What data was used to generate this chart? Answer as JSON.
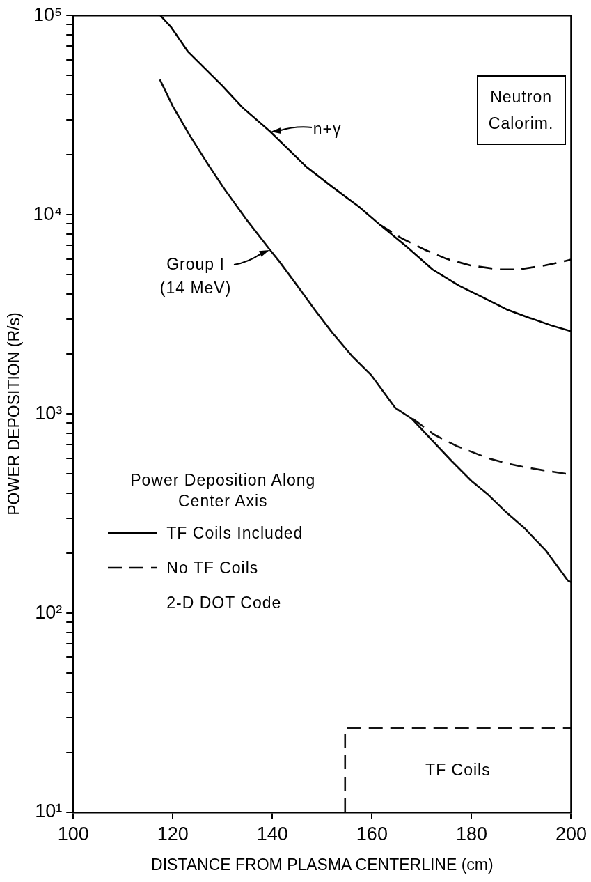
{
  "chart_data": {
    "type": "line",
    "xlabel": "DISTANCE FROM PLASMA CENTERLINE (cm)",
    "ylabel": "POWER DEPOSITION (R/s)",
    "log": "y",
    "marker": "none",
    "legend": "left",
    "legend_title": "Power Deposition Along Center Axis",
    "xlim": [
      100,
      200
    ],
    "xticks": [
      100,
      120,
      140,
      160,
      180,
      200
    ],
    "ylim": [
      10,
      100000
    ],
    "yticks": [
      {
        "value": 10,
        "label": "10¹"
      },
      {
        "value": 20,
        "label": null
      },
      {
        "value": 30,
        "label": null
      },
      {
        "value": 40,
        "label": null
      },
      {
        "value": 50,
        "label": null
      },
      {
        "value": 60,
        "label": null
      },
      {
        "value": 70,
        "label": null
      },
      {
        "value": 80,
        "label": null
      },
      {
        "value": 90,
        "label": null
      },
      {
        "value": 100,
        "label": "10²"
      },
      {
        "value": 200,
        "label": null
      },
      {
        "value": 300,
        "label": null
      },
      {
        "value": 400,
        "label": null
      },
      {
        "value": 500,
        "label": null
      },
      {
        "value": 600,
        "label": null
      },
      {
        "value": 700,
        "label": null
      },
      {
        "value": 800,
        "label": null
      },
      {
        "value": 900,
        "label": null
      },
      {
        "value": 1000,
        "label": "10³"
      },
      {
        "value": 2000,
        "label": null
      },
      {
        "value": 3000,
        "label": null
      },
      {
        "value": 4000,
        "label": null
      },
      {
        "value": 5000,
        "label": null
      },
      {
        "value": 6000,
        "label": null
      },
      {
        "value": 7000,
        "label": null
      },
      {
        "value": 8000,
        "label": null
      },
      {
        "value": 9000,
        "label": null
      },
      {
        "value": 10000,
        "label": "10⁴"
      },
      {
        "value": 20000,
        "label": null
      },
      {
        "value": 30000,
        "label": null
      },
      {
        "value": 40000,
        "label": null
      },
      {
        "value": 50000,
        "label": null
      },
      {
        "value": 60000,
        "label": null
      },
      {
        "value": 70000,
        "label": null
      },
      {
        "value": 80000,
        "label": null
      },
      {
        "value": 90000,
        "label": null
      },
      {
        "value": 100000,
        "label": "10⁵"
      }
    ],
    "series": [
      {
        "name": "TF Coils Included",
        "color": "#000000",
        "line_style": "solid",
        "x": [
          117.5,
          119.7,
          123,
          129.8,
          134,
          139.5,
          146.8,
          152,
          157.3,
          161.6,
          167,
          172.2,
          177.5,
          182.7,
          187,
          191.7,
          196,
          200
        ],
        "values": [
          100000,
          87000,
          66000,
          44700,
          34500,
          26200,
          17400,
          13800,
          11000,
          8900,
          6900,
          5300,
          4400,
          3800,
          3350,
          3030,
          2780,
          2600
        ]
      },
      {
        "name": "No TF Coils",
        "color": "#050505",
        "line_style": "dashed",
        "x": [
          161.6,
          166,
          170.6,
          175,
          179.8,
          185.6,
          189.4,
          194.7,
          198.9,
          200
        ],
        "values": [
          8900,
          7600,
          6670,
          6000,
          5560,
          5310,
          5310,
          5560,
          5860,
          5950
        ]
      },
      {
        "color": "#0a0a0a",
        "line_style": "solid",
        "x": [
          117.4,
          120,
          123.4,
          127,
          130.4,
          135,
          139.5,
          141.4,
          145,
          148.6,
          152,
          156,
          159.8,
          164.7,
          168,
          172,
          176,
          180,
          183.2,
          187,
          190.7,
          195,
          199.3,
          200
        ],
        "values": [
          47700,
          35000,
          25000,
          18000,
          13400,
          9300,
          6670,
          5820,
          4400,
          3310,
          2560,
          1950,
          1570,
          1070,
          946,
          740,
          580,
          460,
          396,
          320,
          266,
          205,
          146,
          143
        ]
      },
      {
        "color": "#0f0f0f",
        "line_style": "dashed",
        "x": [
          168.2,
          172.4,
          177,
          183.2,
          187,
          190.7,
          195,
          198.9,
          200
        ],
        "values": [
          946,
          789,
          690,
          601,
          565,
          540,
          518,
          501,
          498
        ]
      },
      {
        "color": "#141414",
        "line_style": "dashed",
        "x": [
          154.6,
          154.6,
          200
        ],
        "values": [
          10,
          26.5,
          26.5
        ]
      }
    ],
    "annotations": [
      {
        "text": "n+γ",
        "x": 139.5,
        "y": 26200
      },
      {
        "text": "Group I (14 MeV)",
        "x": 139.5,
        "y": 6670
      },
      "TF Coils",
      "Neutron Calorim.",
      "2-D DOT Code"
    ]
  }
}
